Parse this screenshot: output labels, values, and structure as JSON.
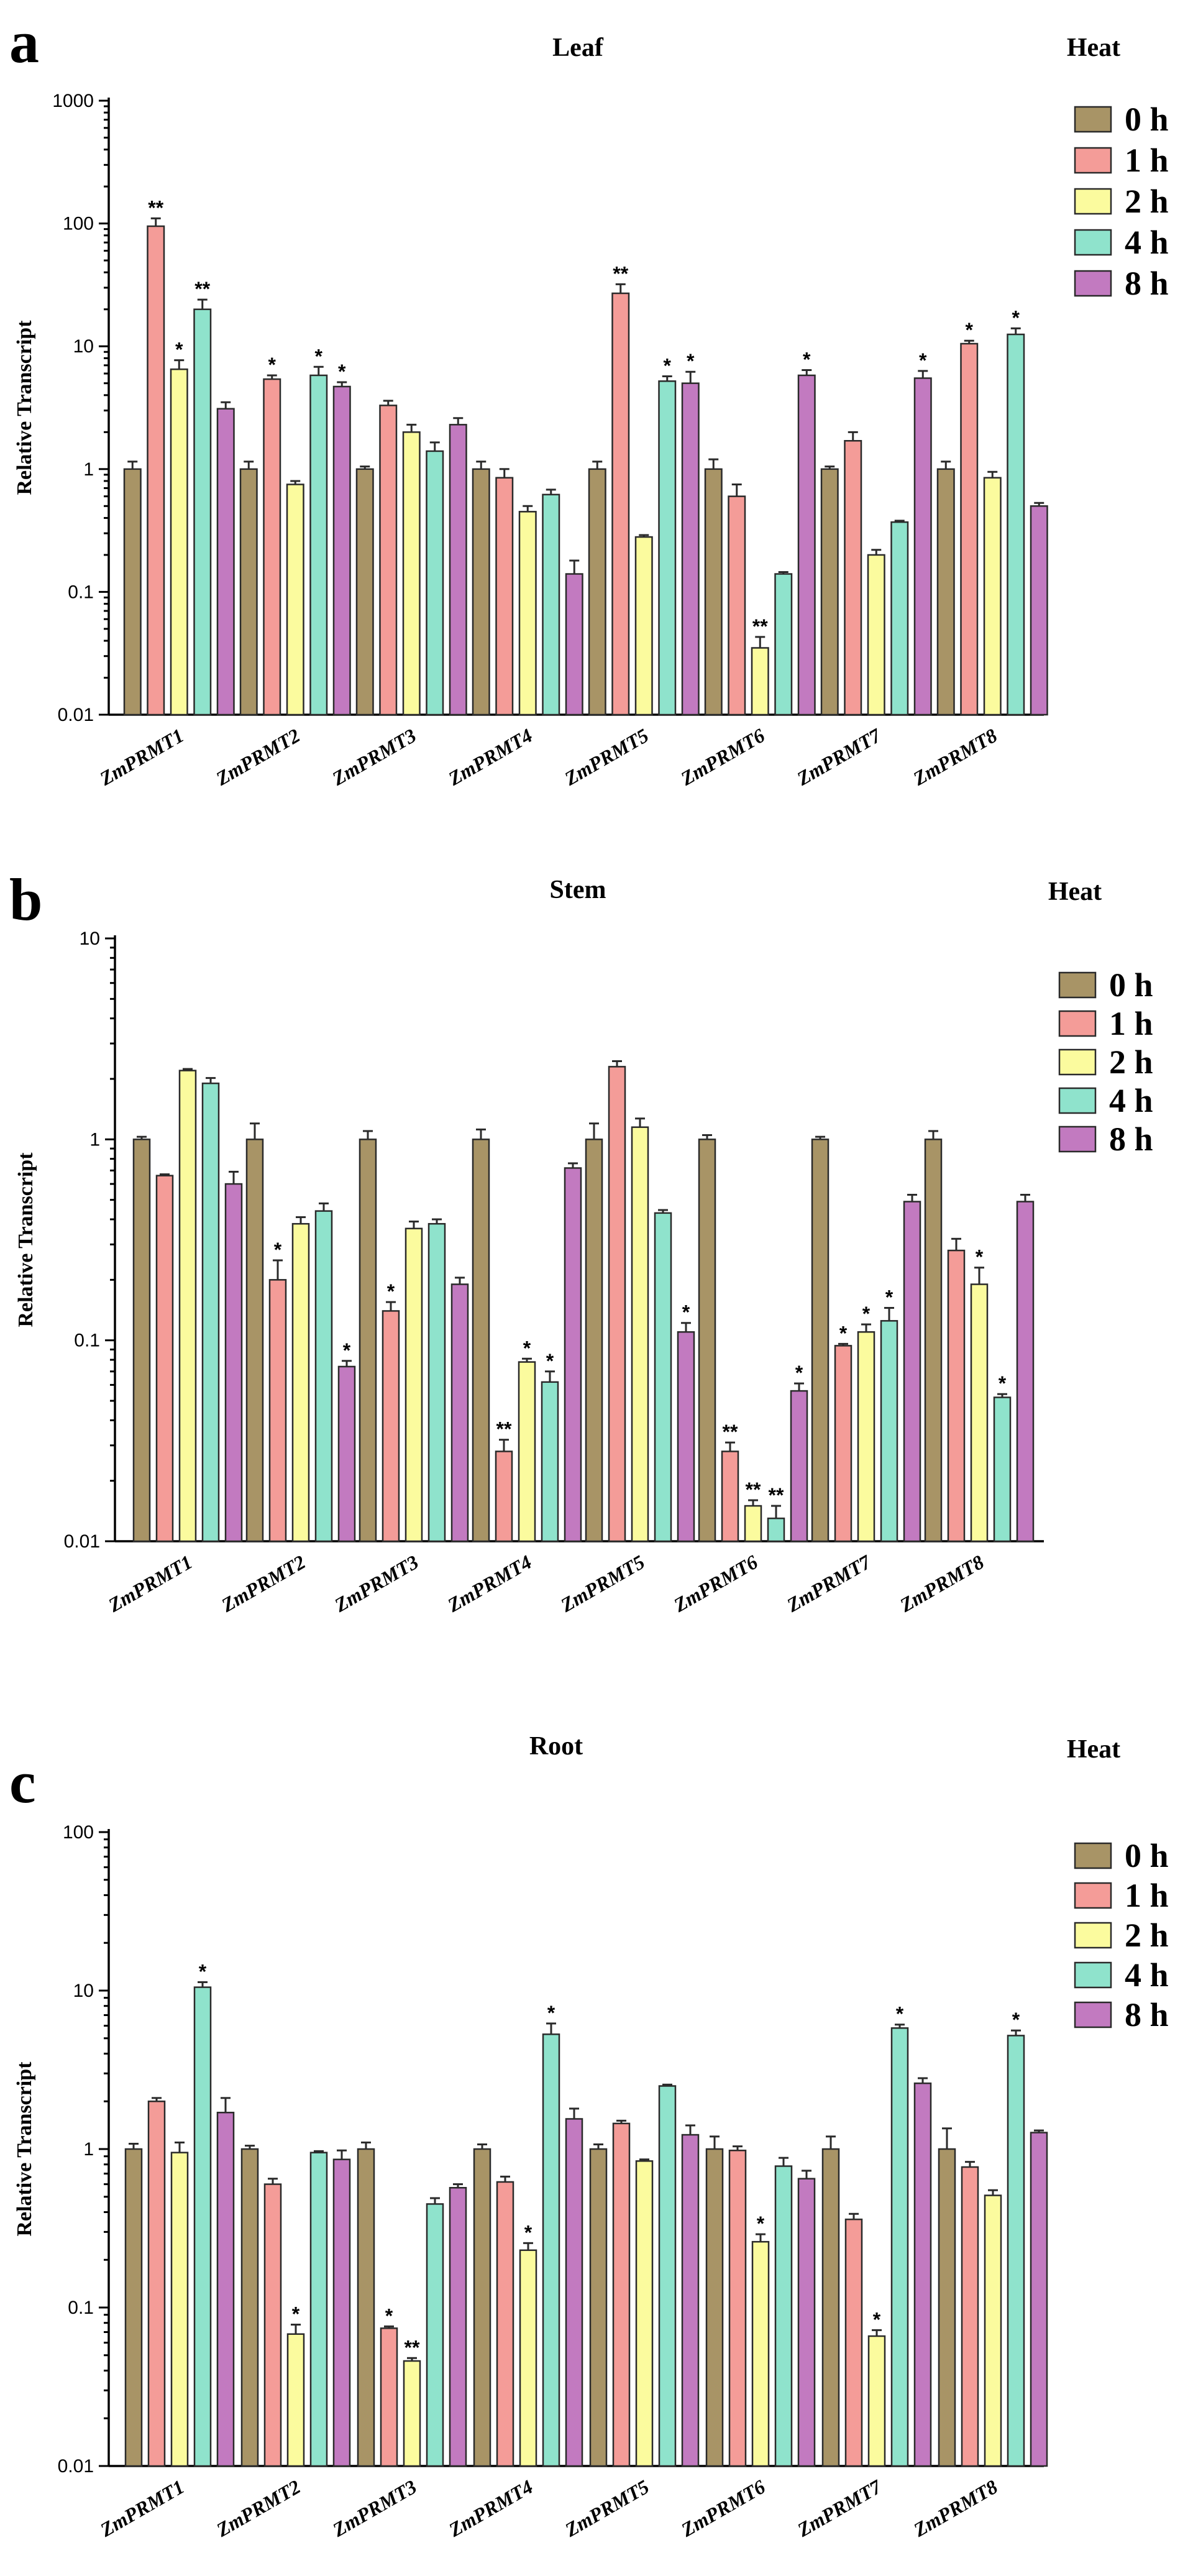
{
  "chart_data": [
    {
      "type": "bar",
      "panel": "a",
      "title": "Leaf",
      "condition": "Heat",
      "ylabel": "Relative Transcript",
      "xlabel": "",
      "yscale": "log",
      "ylim": [
        0.01,
        1000
      ],
      "yticks": [
        "0.01",
        "0.1",
        "1",
        "10",
        "100",
        "1000"
      ],
      "categories": [
        "ZmPRMT1",
        "ZmPRMT2",
        "ZmPRMT3",
        "ZmPRMT4",
        "ZmPRMT5",
        "ZmPRMT6",
        "ZmPRMT7",
        "ZmPRMT8"
      ],
      "series": [
        {
          "name": "0 h",
          "color": "#a89466",
          "values": [
            1,
            1,
            1,
            1,
            1,
            1,
            1,
            1
          ],
          "errors": [
            0.15,
            0.15,
            0.05,
            0.15,
            0.15,
            0.2,
            0.05,
            0.15
          ],
          "sig": [
            "",
            "",
            "",
            "",
            "",
            "",
            "",
            ""
          ]
        },
        {
          "name": "1 h",
          "color": "#f49c98",
          "values": [
            95,
            5.4,
            3.3,
            0.85,
            27,
            0.6,
            1.7,
            10.5
          ],
          "errors": [
            15,
            0.4,
            0.3,
            0.15,
            5,
            0.15,
            0.3,
            0.6
          ],
          "sig": [
            "**",
            "*",
            "",
            "",
            "**",
            "",
            "",
            "*"
          ]
        },
        {
          "name": "2 h",
          "color": "#fbfb9e",
          "values": [
            6.5,
            0.75,
            2.0,
            0.45,
            0.28,
            0.035,
            0.2,
            0.85
          ],
          "errors": [
            1.2,
            0.05,
            0.3,
            0.05,
            0.01,
            0.008,
            0.02,
            0.1
          ],
          "sig": [
            "*",
            "",
            "",
            "",
            "",
            "**",
            "",
            ""
          ]
        },
        {
          "name": "4 h",
          "color": "#8fe3cc",
          "values": [
            20,
            5.8,
            1.4,
            0.62,
            5.2,
            0.14,
            0.37,
            12.5
          ],
          "errors": [
            4,
            1.0,
            0.25,
            0.06,
            0.5,
            0.005,
            0.01,
            1.5
          ],
          "sig": [
            "**",
            "*",
            "",
            "",
            "*",
            "",
            "",
            "*"
          ]
        },
        {
          "name": "8 h",
          "color": "#c27ac0",
          "values": [
            3.1,
            4.7,
            2.3,
            0.14,
            5.0,
            5.8,
            5.5,
            0.5
          ],
          "errors": [
            0.4,
            0.4,
            0.3,
            0.04,
            1.2,
            0.6,
            0.8,
            0.03
          ],
          "sig": [
            "",
            "*",
            "",
            "",
            "*",
            "*",
            "*",
            ""
          ]
        }
      ]
    },
    {
      "type": "bar",
      "panel": "b",
      "title": "Stem",
      "condition": "Heat",
      "ylabel": "Relative Transcript",
      "xlabel": "",
      "yscale": "log",
      "ylim": [
        0.01,
        10
      ],
      "yticks": [
        "0.01",
        "0.1",
        "1",
        "10"
      ],
      "categories": [
        "ZmPRMT1",
        "ZmPRMT2",
        "ZmPRMT3",
        "ZmPRMT4",
        "ZmPRMT5",
        "ZmPRMT6",
        "ZmPRMT7",
        "ZmPRMT8"
      ],
      "series": [
        {
          "name": "0 h",
          "color": "#a89466",
          "values": [
            1,
            1,
            1,
            1,
            1,
            1,
            1,
            1
          ],
          "errors": [
            0.03,
            0.2,
            0.1,
            0.12,
            0.2,
            0.05,
            0.03,
            0.1
          ],
          "sig": [
            "",
            "",
            "",
            "",
            "",
            "",
            "",
            ""
          ]
        },
        {
          "name": "1 h",
          "color": "#f49c98",
          "values": [
            0.66,
            0.2,
            0.14,
            0.028,
            2.3,
            0.028,
            0.094,
            0.28
          ],
          "errors": [
            0.01,
            0.05,
            0.015,
            0.004,
            0.15,
            0.003,
            0.002,
            0.04
          ],
          "sig": [
            "",
            "*",
            "*",
            "**",
            "",
            "**",
            "*",
            ""
          ]
        },
        {
          "name": "2 h",
          "color": "#fbfb9e",
          "values": [
            2.2,
            0.38,
            0.36,
            0.078,
            1.15,
            0.015,
            0.11,
            0.19
          ],
          "errors": [
            0.04,
            0.03,
            0.03,
            0.003,
            0.12,
            0.001,
            0.01,
            0.04
          ],
          "sig": [
            "",
            "",
            "",
            "*",
            "",
            "**",
            "*",
            "*"
          ]
        },
        {
          "name": "4 h",
          "color": "#8fe3cc",
          "values": [
            1.9,
            0.44,
            0.38,
            0.062,
            0.43,
            0.013,
            0.125,
            0.052
          ],
          "errors": [
            0.12,
            0.04,
            0.02,
            0.008,
            0.015,
            0.002,
            0.02,
            0.002
          ],
          "sig": [
            "",
            "",
            "",
            "*",
            "",
            "**",
            "*",
            "*"
          ]
        },
        {
          "name": "8 h",
          "color": "#c27ac0",
          "values": [
            0.6,
            0.074,
            0.19,
            0.72,
            0.11,
            0.056,
            0.49,
            0.49
          ],
          "errors": [
            0.09,
            0.005,
            0.015,
            0.04,
            0.012,
            0.005,
            0.04,
            0.04
          ],
          "sig": [
            "",
            "*",
            "",
            "",
            "*",
            "*",
            "",
            ""
          ]
        }
      ]
    },
    {
      "type": "bar",
      "panel": "c",
      "title": "Root",
      "condition": "Heat",
      "ylabel": "Relative Transcript",
      "xlabel": "",
      "yscale": "log",
      "ylim": [
        0.01,
        100
      ],
      "yticks": [
        "0.01",
        "0.1",
        "1",
        "10",
        "100"
      ],
      "categories": [
        "ZmPRMT1",
        "ZmPRMT2",
        "ZmPRMT3",
        "ZmPRMT4",
        "ZmPRMT5",
        "ZmPRMT6",
        "ZmPRMT7",
        "ZmPRMT8"
      ],
      "series": [
        {
          "name": "0 h",
          "color": "#a89466",
          "values": [
            1,
            1,
            1,
            1,
            1,
            1,
            1,
            1
          ],
          "errors": [
            0.08,
            0.05,
            0.1,
            0.07,
            0.07,
            0.2,
            0.2,
            0.35
          ],
          "sig": [
            "",
            "",
            "",
            "",
            "",
            "",
            "",
            ""
          ]
        },
        {
          "name": "1 h",
          "color": "#f49c98",
          "values": [
            2.0,
            0.6,
            0.074,
            0.62,
            1.45,
            0.98,
            0.36,
            0.77
          ],
          "errors": [
            0.1,
            0.05,
            0.002,
            0.05,
            0.06,
            0.06,
            0.03,
            0.06
          ],
          "sig": [
            "",
            "",
            "*",
            "",
            "",
            "",
            "",
            ""
          ]
        },
        {
          "name": "2 h",
          "color": "#fbfb9e",
          "values": [
            0.95,
            0.068,
            0.046,
            0.23,
            0.84,
            0.26,
            0.066,
            0.51
          ],
          "errors": [
            0.15,
            0.01,
            0.002,
            0.025,
            0.02,
            0.03,
            0.006,
            0.04
          ],
          "sig": [
            "",
            "*",
            "**",
            "*",
            "",
            "*",
            "*",
            ""
          ]
        },
        {
          "name": "4 h",
          "color": "#8fe3cc",
          "values": [
            10.5,
            0.95,
            0.45,
            5.3,
            2.5,
            0.78,
            5.8,
            5.2
          ],
          "errors": [
            0.8,
            0.02,
            0.04,
            0.9,
            0.05,
            0.1,
            0.3,
            0.4
          ],
          "sig": [
            "*",
            "",
            "",
            "*",
            "",
            "",
            "*",
            "*"
          ]
        },
        {
          "name": "8 h",
          "color": "#c27ac0",
          "values": [
            1.7,
            0.86,
            0.57,
            1.55,
            1.23,
            0.65,
            2.6,
            1.27
          ],
          "errors": [
            0.4,
            0.12,
            0.03,
            0.25,
            0.18,
            0.08,
            0.2,
            0.04
          ],
          "sig": [
            "",
            "",
            "",
            "",
            "",
            "",
            "",
            ""
          ]
        }
      ]
    }
  ]
}
